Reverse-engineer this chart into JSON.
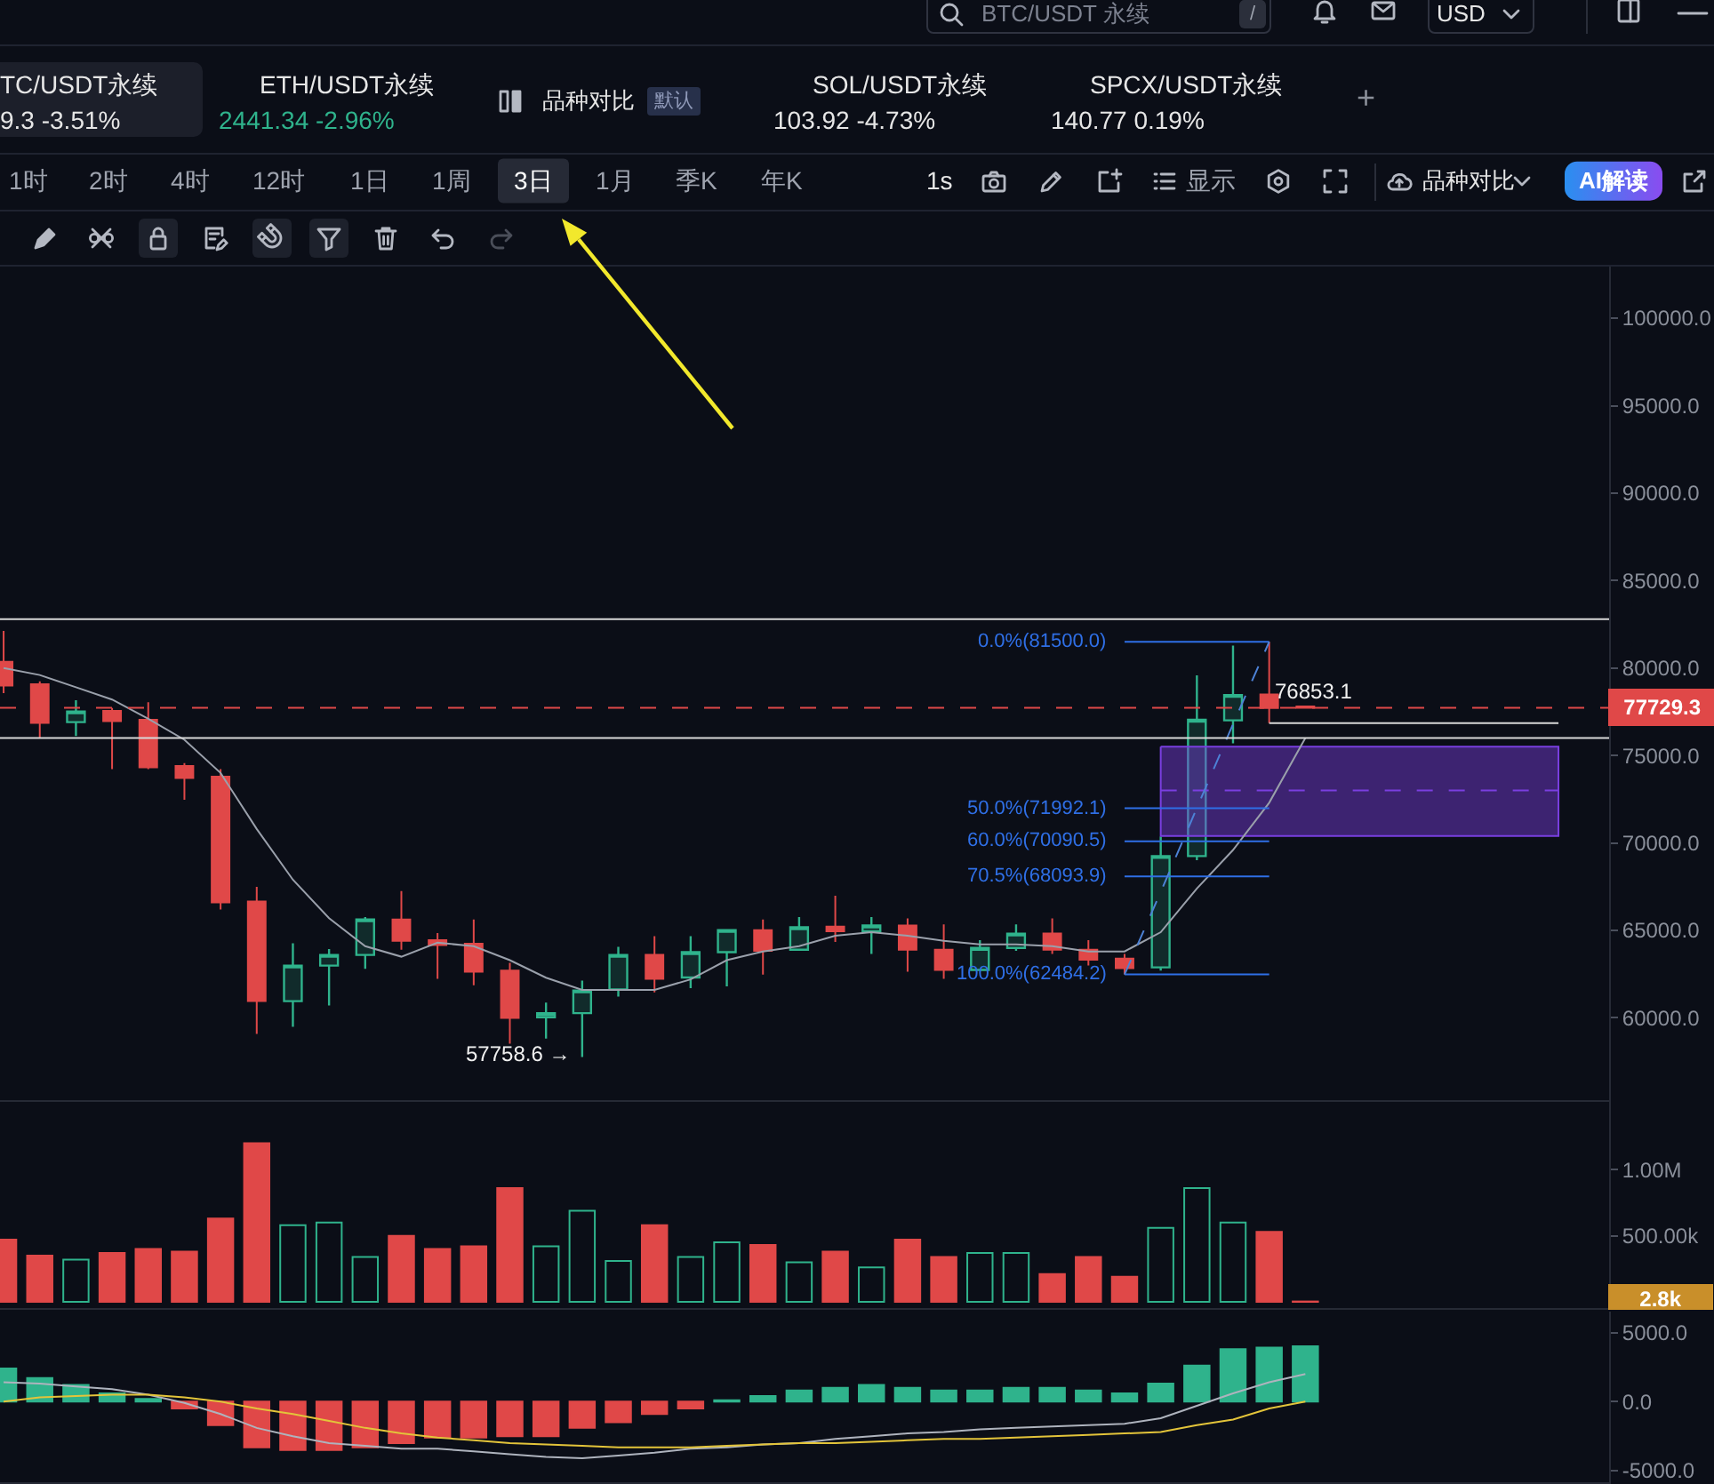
{
  "chart_data": [
    {
      "type": "other",
      "annotations": [
        "BTC/USDT 永续",
        "/",
        "USD",
        "TC/USDT永续",
        "9.3 -3.51%",
        "ETH/USDT永续",
        "2441.34 -2.96%",
        "品种对比",
        "默认",
        "SOL/USDT永续",
        "103.92 -4.73%",
        "SPCX/USDT永续",
        "140.77 0.19%",
        "+",
        "1时",
        "2时",
        "4时",
        "12时",
        "1日",
        "1周",
        "3日",
        "1月",
        "季K",
        "年K",
        "1s",
        "显示",
        "品种对比",
        "AI解读"
      ]
    },
    {
      "type": "candlestick",
      "tick_labels": "y",
      "categories": [
        null,
        null,
        null,
        null,
        null,
        null,
        null,
        null,
        null,
        null,
        null,
        null,
        null,
        null,
        null,
        null,
        null,
        null,
        null,
        null,
        null,
        null,
        null,
        null,
        null,
        null,
        null,
        null,
        null,
        null,
        null,
        null,
        null,
        null,
        null,
        null,
        null,
        null,
        null,
        null,
        null,
        null,
        null,
        null
      ],
      "ohlc": [
        [
          80360,
          82120,
          78560,
          79000
        ],
        [
          79070,
          79240,
          76020,
          76870
        ],
        [
          76910,
          78160,
          76120,
          77520
        ],
        [
          77550,
          77720,
          74220,
          76970
        ],
        [
          77040,
          78050,
          74220,
          74330
        ],
        [
          74400,
          74570,
          72470,
          73720
        ],
        [
          73790,
          74220,
          66200,
          66600
        ],
        [
          66650,
          67490,
          59090,
          60960
        ],
        [
          60960,
          64270,
          59490,
          62990
        ],
        [
          62990,
          63930,
          60710,
          63600
        ],
        [
          63600,
          65760,
          62810,
          65630
        ],
        [
          65630,
          67250,
          63900,
          64410
        ],
        [
          64440,
          64850,
          62240,
          64170
        ],
        [
          64240,
          65630,
          61870,
          62640
        ],
        [
          62710,
          63150,
          58520,
          60000
        ],
        [
          60040,
          60880,
          58820,
          60270
        ],
        [
          60270,
          62130,
          57758.6,
          61570
        ],
        [
          61630,
          64060,
          61220,
          63600
        ],
        [
          63600,
          64670,
          61460,
          62240
        ],
        [
          62310,
          64670,
          61700,
          63760
        ],
        [
          63760,
          65080,
          61800,
          65020
        ],
        [
          65020,
          65630,
          62480,
          63830
        ],
        [
          63900,
          65760,
          63830,
          65180
        ],
        [
          65220,
          66980,
          64340,
          64950
        ],
        [
          64950,
          65760,
          63660,
          65280
        ],
        [
          65280,
          65690,
          62640,
          63900
        ],
        [
          63900,
          65350,
          62240,
          62740
        ],
        [
          62740,
          64440,
          62710,
          64000
        ],
        [
          64000,
          65350,
          63830,
          64820
        ],
        [
          64820,
          65690,
          63660,
          63900
        ],
        [
          63900,
          64440,
          62990,
          63320
        ],
        [
          63390,
          63660,
          62484.2,
          62850
        ],
        [
          62890,
          70360,
          62700,
          69250
        ],
        [
          69250,
          79580,
          69010,
          77040
        ],
        [
          77010,
          81280,
          75690,
          78460
        ],
        [
          78490,
          81500,
          76853.1,
          77720
        ],
        [
          77800,
          77800,
          77700,
          77729.3
        ],
        null,
        null,
        null,
        null,
        null,
        null,
        null
      ],
      "colors": [
        "#e04848",
        "#e04848",
        "#2fb38c",
        "#e04848",
        "#e04848",
        "#e04848",
        "#e04848",
        "#e04848",
        "#2fb38c",
        "#2fb38c",
        "#2fb38c",
        "#e04848",
        "#e04848",
        "#e04848",
        "#e04848",
        "#2fb38c",
        "#2fb38c",
        "#2fb38c",
        "#e04848",
        "#2fb38c",
        "#2fb38c",
        "#e04848",
        "#2fb38c",
        "#e04848",
        "#2fb38c",
        "#e04848",
        "#e04848",
        "#2fb38c",
        "#2fb38c",
        "#e04848",
        "#e04848",
        "#e04848",
        "#2fb38c",
        "#2fb38c",
        "#2fb38c",
        "#e04848",
        "#e04848",
        null,
        null,
        null,
        null,
        null,
        null,
        null
      ],
      "series": [
        {
          "type": "line",
          "color": "#9aa0ab",
          "values": [
            80000,
            79600,
            78900,
            78200,
            77100,
            75900,
            74000,
            70800,
            67900,
            65700,
            64100,
            63500,
            64300,
            64100,
            63300,
            62300,
            61600,
            61600,
            61600,
            62200,
            63300,
            63800,
            64100,
            64700,
            64900,
            64700,
            64400,
            64200,
            64200,
            64100,
            63800,
            63800,
            64900,
            67400,
            69600,
            72300,
            76000,
            null,
            null,
            null,
            null,
            null,
            null,
            null
          ]
        },
        {
          "type": "line",
          "color": "#7a3fe0",
          "line_style": "dashed",
          "values": [
            null,
            null,
            null,
            null,
            null,
            null,
            null,
            null,
            null,
            null,
            null,
            null,
            null,
            null,
            null,
            null,
            null,
            null,
            null,
            null,
            null,
            null,
            null,
            null,
            null,
            null,
            null,
            null,
            null,
            null,
            null,
            null,
            73000,
            73000,
            73000,
            73000,
            73000,
            73000,
            73000,
            73000,
            73000,
            73000,
            73000,
            73000
          ],
          "lower": [
            null,
            null,
            null,
            null,
            null,
            null,
            null,
            null,
            null,
            null,
            null,
            null,
            null,
            null,
            null,
            null,
            null,
            null,
            null,
            null,
            null,
            null,
            null,
            null,
            null,
            null,
            null,
            null,
            null,
            null,
            null,
            null,
            70400,
            70400,
            70400,
            70400,
            70400,
            70400,
            70400,
            70400,
            70400,
            70400,
            70400,
            70400
          ],
          "upper": [
            null,
            null,
            null,
            null,
            null,
            null,
            null,
            null,
            null,
            null,
            null,
            null,
            null,
            null,
            null,
            null,
            null,
            null,
            null,
            null,
            null,
            null,
            null,
            null,
            null,
            null,
            null,
            null,
            null,
            null,
            null,
            null,
            75500,
            75500,
            75500,
            75500,
            75500,
            75500,
            75500,
            75500,
            75500,
            75500,
            75500,
            75500
          ]
        },
        {
          "type": "line",
          "name": "0.0%(81500.0)",
          "color": "#2f6fe6",
          "values": [
            null,
            null,
            null,
            null,
            null,
            null,
            null,
            null,
            null,
            null,
            null,
            null,
            null,
            null,
            null,
            null,
            null,
            null,
            null,
            null,
            null,
            null,
            null,
            null,
            null,
            null,
            null,
            null,
            null,
            null,
            null,
            81500,
            81500,
            81500,
            81500,
            81500,
            null,
            null,
            null,
            null,
            null,
            null,
            null,
            null
          ]
        },
        {
          "type": "line",
          "name": "50.0%(71992.1)",
          "color": "#2f6fe6",
          "values": [
            null,
            null,
            null,
            null,
            null,
            null,
            null,
            null,
            null,
            null,
            null,
            null,
            null,
            null,
            null,
            null,
            null,
            null,
            null,
            null,
            null,
            null,
            null,
            null,
            null,
            null,
            null,
            null,
            null,
            null,
            null,
            71992.1,
            71992.1,
            71992.1,
            71992.1,
            71992.1,
            null,
            null,
            null,
            null,
            null,
            null,
            null,
            null
          ]
        },
        {
          "type": "line",
          "name": "60.0%(70090.5)",
          "color": "#2f6fe6",
          "values": [
            null,
            null,
            null,
            null,
            null,
            null,
            null,
            null,
            null,
            null,
            null,
            null,
            null,
            null,
            null,
            null,
            null,
            null,
            null,
            null,
            null,
            null,
            null,
            null,
            null,
            null,
            null,
            null,
            null,
            null,
            null,
            70090.5,
            70090.5,
            70090.5,
            70090.5,
            70090.5,
            null,
            null,
            null,
            null,
            null,
            null,
            null,
            null
          ]
        },
        {
          "type": "line",
          "name": "70.5%(68093.9)",
          "color": "#2f6fe6",
          "values": [
            null,
            null,
            null,
            null,
            null,
            null,
            null,
            null,
            null,
            null,
            null,
            null,
            null,
            null,
            null,
            null,
            null,
            null,
            null,
            null,
            null,
            null,
            null,
            null,
            null,
            null,
            null,
            null,
            null,
            null,
            null,
            68093.9,
            68093.9,
            68093.9,
            68093.9,
            68093.9,
            null,
            null,
            null,
            null,
            null,
            null,
            null,
            null
          ]
        },
        {
          "type": "line",
          "name": "100.0%(62484.2)",
          "color": "#2f6fe6",
          "values": [
            null,
            null,
            null,
            null,
            null,
            null,
            null,
            null,
            null,
            null,
            null,
            null,
            null,
            null,
            null,
            null,
            null,
            null,
            null,
            null,
            null,
            null,
            null,
            null,
            null,
            null,
            null,
            null,
            null,
            null,
            null,
            62484.2,
            62484.2,
            62484.2,
            62484.2,
            62484.2,
            null,
            null,
            null,
            null,
            null,
            null,
            null,
            null
          ]
        },
        {
          "type": "line",
          "color": "#4d82d6",
          "line_style": "dashed",
          "values": [
            null,
            null,
            null,
            null,
            null,
            null,
            null,
            null,
            null,
            null,
            null,
            null,
            null,
            null,
            null,
            null,
            null,
            null,
            null,
            null,
            null,
            null,
            null,
            null,
            null,
            null,
            null,
            null,
            null,
            null,
            null,
            62484.2,
            67200,
            72000,
            76800,
            81500,
            null,
            null,
            null,
            null,
            null,
            null,
            null,
            null
          ]
        },
        {
          "type": "line",
          "color": "#d8d8d8",
          "values": [
            null,
            null,
            null,
            null,
            null,
            null,
            null,
            null,
            null,
            null,
            null,
            null,
            null,
            null,
            null,
            null,
            null,
            null,
            null,
            null,
            null,
            null,
            null,
            null,
            null,
            null,
            null,
            null,
            null,
            null,
            null,
            null,
            null,
            null,
            null,
            76853.1,
            76853.1,
            76853.1,
            76853.1,
            76853.1,
            76853.1,
            76853.1,
            76853.1,
            76853.1
          ]
        }
      ],
      "ylim": [
        55300,
        102950
      ],
      "yticks": [
        {
          "value": 60000,
          "label": "60000.0"
        },
        {
          "value": 65000,
          "label": "65000.0"
        },
        {
          "value": 70000,
          "label": "70000.0"
        },
        {
          "value": 75000,
          "label": "75000.0"
        },
        {
          "value": 80000,
          "label": "80000.0"
        },
        {
          "value": 85000,
          "label": "85000.0"
        },
        {
          "value": 90000,
          "label": "90000.0"
        },
        {
          "value": 95000,
          "label": "95000.0"
        },
        {
          "value": 100000,
          "label": "100000.0"
        }
      ],
      "ref_lines": [
        {
          "axis": "y",
          "value": 82800,
          "color": "#d8d8d8"
        },
        {
          "axis": "y",
          "value": 76000,
          "color": "#d8d8d8"
        },
        {
          "axis": "y",
          "value": 77729.3,
          "label": "77729.3",
          "color": "#e04848",
          "line_style": "dashed"
        }
      ],
      "annotations": [
        "57758.6 →",
        "76853.1"
      ]
    },
    {
      "type": "bar",
      "tick_labels": "y",
      "categories": [
        null,
        null,
        null,
        null,
        null,
        null,
        null,
        null,
        null,
        null,
        null,
        null,
        null,
        null,
        null,
        null,
        null,
        null,
        null,
        null,
        null,
        null,
        null,
        null,
        null,
        null,
        null,
        null,
        null,
        null,
        null,
        null,
        null,
        null,
        null,
        null,
        null,
        null,
        null,
        null,
        null,
        null,
        null,
        null
      ],
      "values": [
        470000,
        350000,
        320000,
        370000,
        400000,
        380000,
        630000,
        1200000,
        580000,
        600000,
        340000,
        500000,
        400000,
        420000,
        860000,
        420000,
        690000,
        310000,
        580000,
        340000,
        450000,
        430000,
        300000,
        380000,
        260000,
        470000,
        340000,
        370000,
        370000,
        210000,
        340000,
        190000,
        560000,
        860000,
        600000,
        530000,
        2800,
        null,
        null,
        null,
        null,
        null,
        null,
        null
      ],
      "colors": [
        "#e04848",
        "#e04848",
        "#2fb38c",
        "#e04848",
        "#e04848",
        "#e04848",
        "#e04848",
        "#e04848",
        "#2fb38c",
        "#2fb38c",
        "#2fb38c",
        "#e04848",
        "#e04848",
        "#e04848",
        "#e04848",
        "#2fb38c",
        "#2fb38c",
        "#2fb38c",
        "#e04848",
        "#2fb38c",
        "#2fb38c",
        "#e04848",
        "#2fb38c",
        "#e04848",
        "#2fb38c",
        "#e04848",
        "#e04848",
        "#2fb38c",
        "#2fb38c",
        "#e04848",
        "#e04848",
        "#e04848",
        "#2fb38c",
        "#2fb38c",
        "#2fb38c",
        "#e04848",
        "#e04848",
        null,
        null,
        null,
        null,
        null,
        null,
        null
      ],
      "ylim": [
        -47000,
        1513000
      ],
      "yticks": [
        {
          "value": 500000,
          "label": "500.00k"
        },
        {
          "value": 1000000,
          "label": "1.00M"
        }
      ],
      "annotations": [
        "2.8k"
      ]
    },
    {
      "type": "bar",
      "tick_labels": "y",
      "categories": [
        null,
        null,
        null,
        null,
        null,
        null,
        null,
        null,
        null,
        null,
        null,
        null,
        null,
        null,
        null,
        null,
        null,
        null,
        null,
        null,
        null,
        null,
        null,
        null,
        null,
        null,
        null,
        null,
        null,
        null,
        null,
        null,
        null,
        null,
        null,
        null,
        null,
        null,
        null,
        null,
        null,
        null,
        null,
        null
      ],
      "series": [
        {
          "type": "bar",
          "colors": [
            "#2fb38c",
            "#2fb38c",
            "#2fb38c",
            "#2fb38c",
            "#2fb38c",
            "#e04848",
            "#e04848",
            "#e04848",
            "#e04848",
            "#e04848",
            "#e04848",
            "#e04848",
            "#e04848",
            "#e04848",
            "#e04848",
            "#e04848",
            "#e04848",
            "#e04848",
            "#e04848",
            "#e04848",
            "#2fb38c",
            "#2fb38c",
            "#2fb38c",
            "#2fb38c",
            "#2fb38c",
            "#2fb38c",
            "#2fb38c",
            "#2fb38c",
            "#2fb38c",
            "#2fb38c",
            "#2fb38c",
            "#2fb38c",
            "#2fb38c",
            "#2fb38c",
            "#2fb38c",
            "#2fb38c",
            "#2fb38c",
            null,
            null,
            null,
            null,
            null,
            null,
            null
          ],
          "values": [
            2400,
            1700,
            1200,
            600,
            200,
            -500,
            -1700,
            -3300,
            -3500,
            -3500,
            -3300,
            -3000,
            -2600,
            -2600,
            -2500,
            -2500,
            -1900,
            -1500,
            -900,
            -500,
            100,
            400,
            800,
            1000,
            1200,
            1000,
            800,
            800,
            1000,
            1000,
            800,
            600,
            1300,
            2600,
            3800,
            3900,
            4000,
            null,
            null,
            null,
            null,
            null,
            null,
            null
          ]
        },
        {
          "type": "line",
          "color": "#aeb3bd",
          "values": [
            1400,
            1300,
            1100,
            900,
            500,
            -100,
            -900,
            -1900,
            -2500,
            -3000,
            -3200,
            -3400,
            -3400,
            -3600,
            -3800,
            -4000,
            -4100,
            -3900,
            -3700,
            -3400,
            -3300,
            -3100,
            -3000,
            -2700,
            -2500,
            -2300,
            -2200,
            -2000,
            -1900,
            -1800,
            -1700,
            -1600,
            -1200,
            -300,
            600,
            1400,
            2000,
            null,
            null,
            null,
            null,
            null,
            null,
            null
          ]
        },
        {
          "type": "line",
          "color": "#e3c43a",
          "values": [
            0,
            300,
            400,
            500,
            500,
            300,
            0,
            -500,
            -900,
            -1400,
            -1900,
            -2300,
            -2600,
            -2800,
            -3000,
            -3100,
            -3200,
            -3300,
            -3300,
            -3300,
            -3200,
            -3100,
            -3000,
            -3000,
            -2900,
            -2800,
            -2700,
            -2700,
            -2600,
            -2500,
            -2400,
            -2300,
            -2200,
            -1700,
            -1300,
            -500,
            0,
            null,
            null,
            null,
            null,
            null,
            null,
            null
          ]
        }
      ],
      "ylim": [
        -5830,
        6510
      ],
      "yticks": [
        {
          "value": 5000,
          "label": "5000.0"
        },
        {
          "value": 0,
          "label": "0.0"
        },
        {
          "value": -5000,
          "label": "-5000.0"
        }
      ]
    }
  ]
}
